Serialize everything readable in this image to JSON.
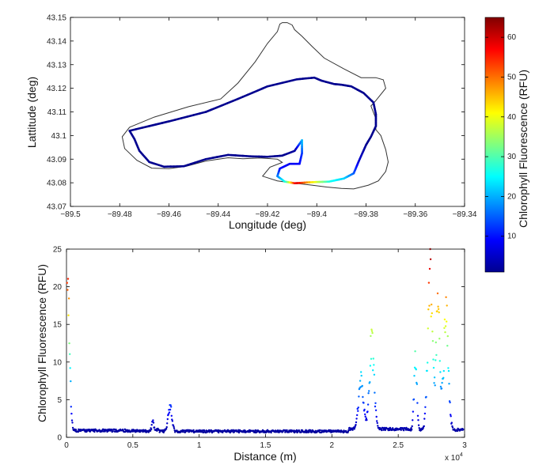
{
  "chart_data": [
    {
      "type": "line",
      "name": "map",
      "xlabel": "Longitude (deg)",
      "ylabel": "Lattitude (deg)",
      "xlim": [
        -89.5,
        -89.34
      ],
      "ylim": [
        43.07,
        43.15
      ],
      "xticks": [
        -89.5,
        -89.48,
        -89.46,
        -89.44,
        -89.42,
        -89.4,
        -89.38,
        -89.36,
        -89.34
      ],
      "xtick_labels": [
        "−89.5",
        "−89.48",
        "−89.46",
        "−89.44",
        "−89.42",
        "−89.4",
        "−89.38",
        "−89.36",
        "−89.34"
      ],
      "yticks": [
        43.07,
        43.08,
        43.09,
        43.1,
        43.11,
        43.12,
        43.13,
        43.14,
        43.15
      ],
      "ytick_labels": [
        "43.07",
        "43.08",
        "43.09",
        "43.1",
        "43.11",
        "43.12",
        "43.13",
        "43.14",
        "43.15"
      ],
      "shoreline": {
        "color": "#333333",
        "x": [
          -89.476,
          -89.466,
          -89.452,
          -89.439,
          -89.432,
          -89.425,
          -89.42,
          -89.416,
          -89.415,
          -89.414,
          -89.412,
          -89.41,
          -89.409,
          -89.406,
          -89.402,
          -89.397,
          -89.389,
          -89.382,
          -89.379,
          -89.376,
          -89.373,
          -89.372,
          -89.376,
          -89.378,
          -89.377,
          -89.376,
          -89.376,
          -89.374,
          -89.372,
          -89.371,
          -89.372,
          -89.375,
          -89.379,
          -89.382,
          -89.385,
          -89.39,
          -89.396,
          -89.402,
          -89.409,
          -89.416,
          -89.422,
          -89.419,
          -89.414,
          -89.416,
          -89.423,
          -89.43,
          -89.436,
          -89.445,
          -89.453,
          -89.46,
          -89.467,
          -89.473,
          -89.478,
          -89.479,
          -89.476
        ],
        "y": [
          43.1035,
          43.1078,
          43.1122,
          43.1155,
          43.1222,
          43.1312,
          43.139,
          43.144,
          43.1472,
          43.1478,
          43.1478,
          43.1468,
          43.1448,
          43.142,
          43.1378,
          43.1328,
          43.1282,
          43.1245,
          43.1245,
          43.1245,
          43.1236,
          43.12,
          43.1148,
          43.1125,
          43.1098,
          43.1072,
          43.1025,
          43.1,
          43.094,
          43.0888,
          43.0848,
          43.0808,
          43.079,
          43.0782,
          43.0774,
          43.0776,
          43.0782,
          43.079,
          43.0798,
          43.0808,
          43.0828,
          43.0866,
          43.0886,
          43.09,
          43.0905,
          43.0902,
          43.0906,
          43.0892,
          43.087,
          43.086,
          43.0862,
          43.0895,
          43.0945,
          43.0995,
          43.1035
        ]
      },
      "track": {
        "x": [
          -89.476,
          -89.46,
          -89.445,
          -89.432,
          -89.42,
          -89.408,
          -89.401,
          -89.398,
          -89.393,
          -89.39,
          -89.386,
          -89.381,
          -89.377,
          -89.376,
          -89.376,
          -89.378,
          -89.38,
          -89.383,
          -89.385,
          -89.389,
          -89.395,
          -89.403,
          -89.409,
          -89.413,
          -89.416,
          -89.415,
          -89.411,
          -89.407,
          -89.406,
          -89.406,
          -89.409,
          -89.414,
          -89.42,
          -89.427,
          -89.436,
          -89.445,
          -89.454,
          -89.462,
          -89.468,
          -89.472,
          -89.474,
          -89.476
        ],
        "y": [
          43.102,
          43.106,
          43.11,
          43.1155,
          43.1208,
          43.1238,
          43.1245,
          43.1232,
          43.1218,
          43.1215,
          43.1208,
          43.118,
          43.114,
          43.109,
          43.104,
          43.0995,
          43.096,
          43.089,
          43.084,
          43.0818,
          43.0805,
          43.0802,
          43.0798,
          43.0805,
          43.0828,
          43.086,
          43.088,
          43.088,
          43.0925,
          43.098,
          43.0935,
          43.0915,
          43.091,
          43.0912,
          43.0918,
          43.09,
          43.087,
          43.0868,
          43.0888,
          43.0935,
          43.0985,
          43.102
        ],
        "rfu": [
          2,
          2,
          2,
          2,
          2,
          2,
          2,
          2,
          2,
          2,
          2,
          2,
          2,
          2,
          2,
          2,
          2,
          6,
          14,
          22,
          26,
          44,
          60,
          28,
          18,
          10,
          8,
          9,
          12,
          22,
          3,
          2,
          2,
          2,
          2,
          2,
          2,
          2,
          2,
          2,
          2,
          2
        ]
      }
    },
    {
      "type": "scatter",
      "name": "chlorophyll-vs-distance",
      "xlabel": "Distance (m)",
      "ylabel": "Chlorophyll Fluorescence (RFU)",
      "x_multiplier": "x 10",
      "x_multiplier_exponent": "4",
      "xlim": [
        0,
        3
      ],
      "ylim": [
        0,
        25
      ],
      "xticks": [
        0,
        0.5,
        1,
        1.5,
        2,
        2.5,
        3
      ],
      "xtick_labels": [
        "0",
        "0.5",
        "1",
        "1.5",
        "2",
        "2.5",
        "3"
      ],
      "yticks": [
        0,
        5,
        10,
        15,
        20,
        25
      ],
      "ytick_labels": [
        "0",
        "5",
        "10",
        "15",
        "20",
        "25"
      ],
      "segments": [
        {
          "x0": 0.02,
          "x1": 0.45,
          "base": 0.9
        },
        {
          "x0": 0.45,
          "x1": 0.66,
          "base": 0.85
        },
        {
          "x0": 0.66,
          "x1": 0.7,
          "base": 1.0
        },
        {
          "x0": 0.7,
          "x1": 2.13,
          "base": 0.8
        },
        {
          "x0": 2.13,
          "x1": 2.58,
          "base": 1.1
        },
        {
          "x0": 2.58,
          "x1": 3.0,
          "base": 1.0
        }
      ],
      "peaks": [
        {
          "x": 0.01,
          "width": 0.02,
          "height": 18
        },
        {
          "x": 0.65,
          "width": 0.01,
          "height": 1.4
        },
        {
          "x": 0.78,
          "width": 0.02,
          "height": 3.2
        },
        {
          "x": 2.22,
          "width": 0.025,
          "height": 7.0
        },
        {
          "x": 2.3,
          "width": 0.025,
          "height": 11.5
        },
        {
          "x": 2.63,
          "width": 0.015,
          "height": 9.0
        },
        {
          "x": 2.74,
          "width": 0.025,
          "height": 21.0
        },
        {
          "x": 2.8,
          "width": 0.02,
          "height": 17.0
        },
        {
          "x": 2.86,
          "width": 0.025,
          "height": 15.0
        }
      ],
      "max_value": 25,
      "n_points": 900
    },
    {
      "type": "heatmap",
      "name": "colorbar",
      "label": "Chlorophyll Fluorescence (RFU)",
      "range": [
        1,
        65
      ],
      "ticks": [
        10,
        20,
        30,
        40,
        50,
        60
      ],
      "tick_labels": [
        "10",
        "20",
        "30",
        "40",
        "50",
        "60"
      ],
      "colormap": "jet"
    }
  ]
}
